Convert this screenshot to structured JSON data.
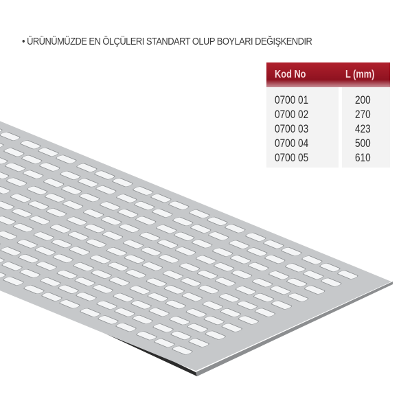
{
  "headline": "• ÜRÜNÜMÜZDE EN ÖLÇÜLERI STANDART OLUP BOYLARI DEĞIŞKENDIR",
  "table": {
    "headers": [
      "Kod No",
      "L (mm)"
    ],
    "rows": [
      [
        "0700 01",
        "200"
      ],
      [
        "0700 02",
        "270"
      ],
      [
        "0700 03",
        "423"
      ],
      [
        "0700 04",
        "500"
      ],
      [
        "0700 05",
        "610"
      ]
    ]
  },
  "colors": {
    "header": "#9e1626",
    "plate": "#c9cbcd",
    "edge": "#2a2a2a"
  }
}
